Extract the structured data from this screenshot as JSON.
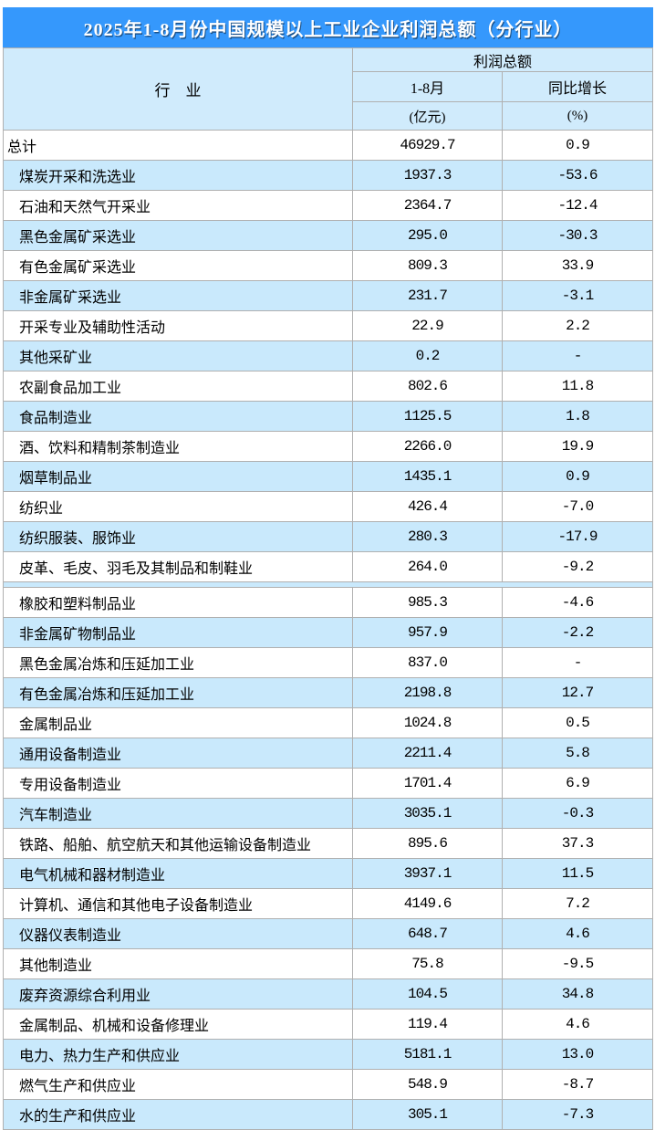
{
  "title": "2025年1-8月份中国规模以上工业企业利润总额（分行业）",
  "colors": {
    "title_bg": "#3598fc",
    "header_bg": "#d0ebfc",
    "row_highlight": "#c9e9fc",
    "border": "#b0b0b0",
    "title_text": "#ffffff",
    "text": "#000000"
  },
  "chart_data": {
    "type": "table",
    "title": "2025年1-8月份中国规模以上工业企业利润总额（分行业）",
    "header": {
      "industry": "行　业",
      "group": "利润总额",
      "period": "1-8月",
      "growth": "同比增长",
      "unit_value": "(亿元)",
      "unit_growth": "(%)"
    },
    "rows": [
      {
        "industry": "总计",
        "value": "46929.7",
        "growth": "0.9",
        "indent": false,
        "shaded": false,
        "gap_after": false
      },
      {
        "industry": "煤炭开采和洗选业",
        "value": "1937.3",
        "growth": "-53.6",
        "indent": true,
        "shaded": true,
        "gap_after": false
      },
      {
        "industry": "石油和天然气开采业",
        "value": "2364.7",
        "growth": "-12.4",
        "indent": true,
        "shaded": false,
        "gap_after": false
      },
      {
        "industry": "黑色金属矿采选业",
        "value": "295.0",
        "growth": "-30.3",
        "indent": true,
        "shaded": true,
        "gap_after": false
      },
      {
        "industry": "有色金属矿采选业",
        "value": "809.3",
        "growth": "33.9",
        "indent": true,
        "shaded": false,
        "gap_after": false
      },
      {
        "industry": "非金属矿采选业",
        "value": "231.7",
        "growth": "-3.1",
        "indent": true,
        "shaded": true,
        "gap_after": false
      },
      {
        "industry": "开采专业及辅助性活动",
        "value": "22.9",
        "growth": "2.2",
        "indent": true,
        "shaded": false,
        "gap_after": false
      },
      {
        "industry": "其他采矿业",
        "value": "0.2",
        "growth": "-",
        "indent": true,
        "shaded": true,
        "gap_after": false
      },
      {
        "industry": "农副食品加工业",
        "value": "802.6",
        "growth": "11.8",
        "indent": true,
        "shaded": false,
        "gap_after": false
      },
      {
        "industry": "食品制造业",
        "value": "1125.5",
        "growth": "1.8",
        "indent": true,
        "shaded": true,
        "gap_after": false
      },
      {
        "industry": "酒、饮料和精制茶制造业",
        "value": "2266.0",
        "growth": "19.9",
        "indent": true,
        "shaded": false,
        "gap_after": false
      },
      {
        "industry": "烟草制品业",
        "value": "1435.1",
        "growth": "0.9",
        "indent": true,
        "shaded": true,
        "gap_after": false
      },
      {
        "industry": "纺织业",
        "value": "426.4",
        "growth": "-7.0",
        "indent": true,
        "shaded": false,
        "gap_after": false
      },
      {
        "industry": "纺织服装、服饰业",
        "value": "280.3",
        "growth": "-17.9",
        "indent": true,
        "shaded": true,
        "gap_after": false
      },
      {
        "industry": "皮革、毛皮、羽毛及其制品和制鞋业",
        "value": "264.0",
        "growth": "-9.2",
        "indent": true,
        "shaded": false,
        "gap_after": true
      },
      {
        "industry": "橡胶和塑料制品业",
        "value": "985.3",
        "growth": "-4.6",
        "indent": true,
        "shaded": false,
        "gap_after": false
      },
      {
        "industry": "非金属矿物制品业",
        "value": "957.9",
        "growth": "-2.2",
        "indent": true,
        "shaded": true,
        "gap_after": false
      },
      {
        "industry": "黑色金属冶炼和压延加工业",
        "value": "837.0",
        "growth": "-",
        "indent": true,
        "shaded": false,
        "gap_after": false
      },
      {
        "industry": "有色金属冶炼和压延加工业",
        "value": "2198.8",
        "growth": "12.7",
        "indent": true,
        "shaded": true,
        "gap_after": false
      },
      {
        "industry": "金属制品业",
        "value": "1024.8",
        "growth": "0.5",
        "indent": true,
        "shaded": false,
        "gap_after": false
      },
      {
        "industry": "通用设备制造业",
        "value": "2211.4",
        "growth": "5.8",
        "indent": true,
        "shaded": true,
        "gap_after": false
      },
      {
        "industry": "专用设备制造业",
        "value": "1701.4",
        "growth": "6.9",
        "indent": true,
        "shaded": false,
        "gap_after": false
      },
      {
        "industry": "汽车制造业",
        "value": "3035.1",
        "growth": "-0.3",
        "indent": true,
        "shaded": true,
        "gap_after": false
      },
      {
        "industry": "铁路、船舶、航空航天和其他运输设备制造业",
        "value": "895.6",
        "growth": "37.3",
        "indent": true,
        "shaded": false,
        "gap_after": false
      },
      {
        "industry": "电气机械和器材制造业",
        "value": "3937.1",
        "growth": "11.5",
        "indent": true,
        "shaded": true,
        "gap_after": false
      },
      {
        "industry": "计算机、通信和其他电子设备制造业",
        "value": "4149.6",
        "growth": "7.2",
        "indent": true,
        "shaded": false,
        "gap_after": false
      },
      {
        "industry": "仪器仪表制造业",
        "value": "648.7",
        "growth": "4.6",
        "indent": true,
        "shaded": true,
        "gap_after": false
      },
      {
        "industry": "其他制造业",
        "value": "75.8",
        "growth": "-9.5",
        "indent": true,
        "shaded": false,
        "gap_after": false
      },
      {
        "industry": "废弃资源综合利用业",
        "value": "104.5",
        "growth": "34.8",
        "indent": true,
        "shaded": true,
        "gap_after": false
      },
      {
        "industry": "金属制品、机械和设备修理业",
        "value": "119.4",
        "growth": "4.6",
        "indent": true,
        "shaded": false,
        "gap_after": false
      },
      {
        "industry": "电力、热力生产和供应业",
        "value": "5181.1",
        "growth": "13.0",
        "indent": true,
        "shaded": true,
        "gap_after": false
      },
      {
        "industry": "燃气生产和供应业",
        "value": "548.9",
        "growth": "-8.7",
        "indent": true,
        "shaded": false,
        "gap_after": false
      },
      {
        "industry": "水的生产和供应业",
        "value": "305.1",
        "growth": "-7.3",
        "indent": true,
        "shaded": true,
        "gap_after": false
      }
    ]
  }
}
